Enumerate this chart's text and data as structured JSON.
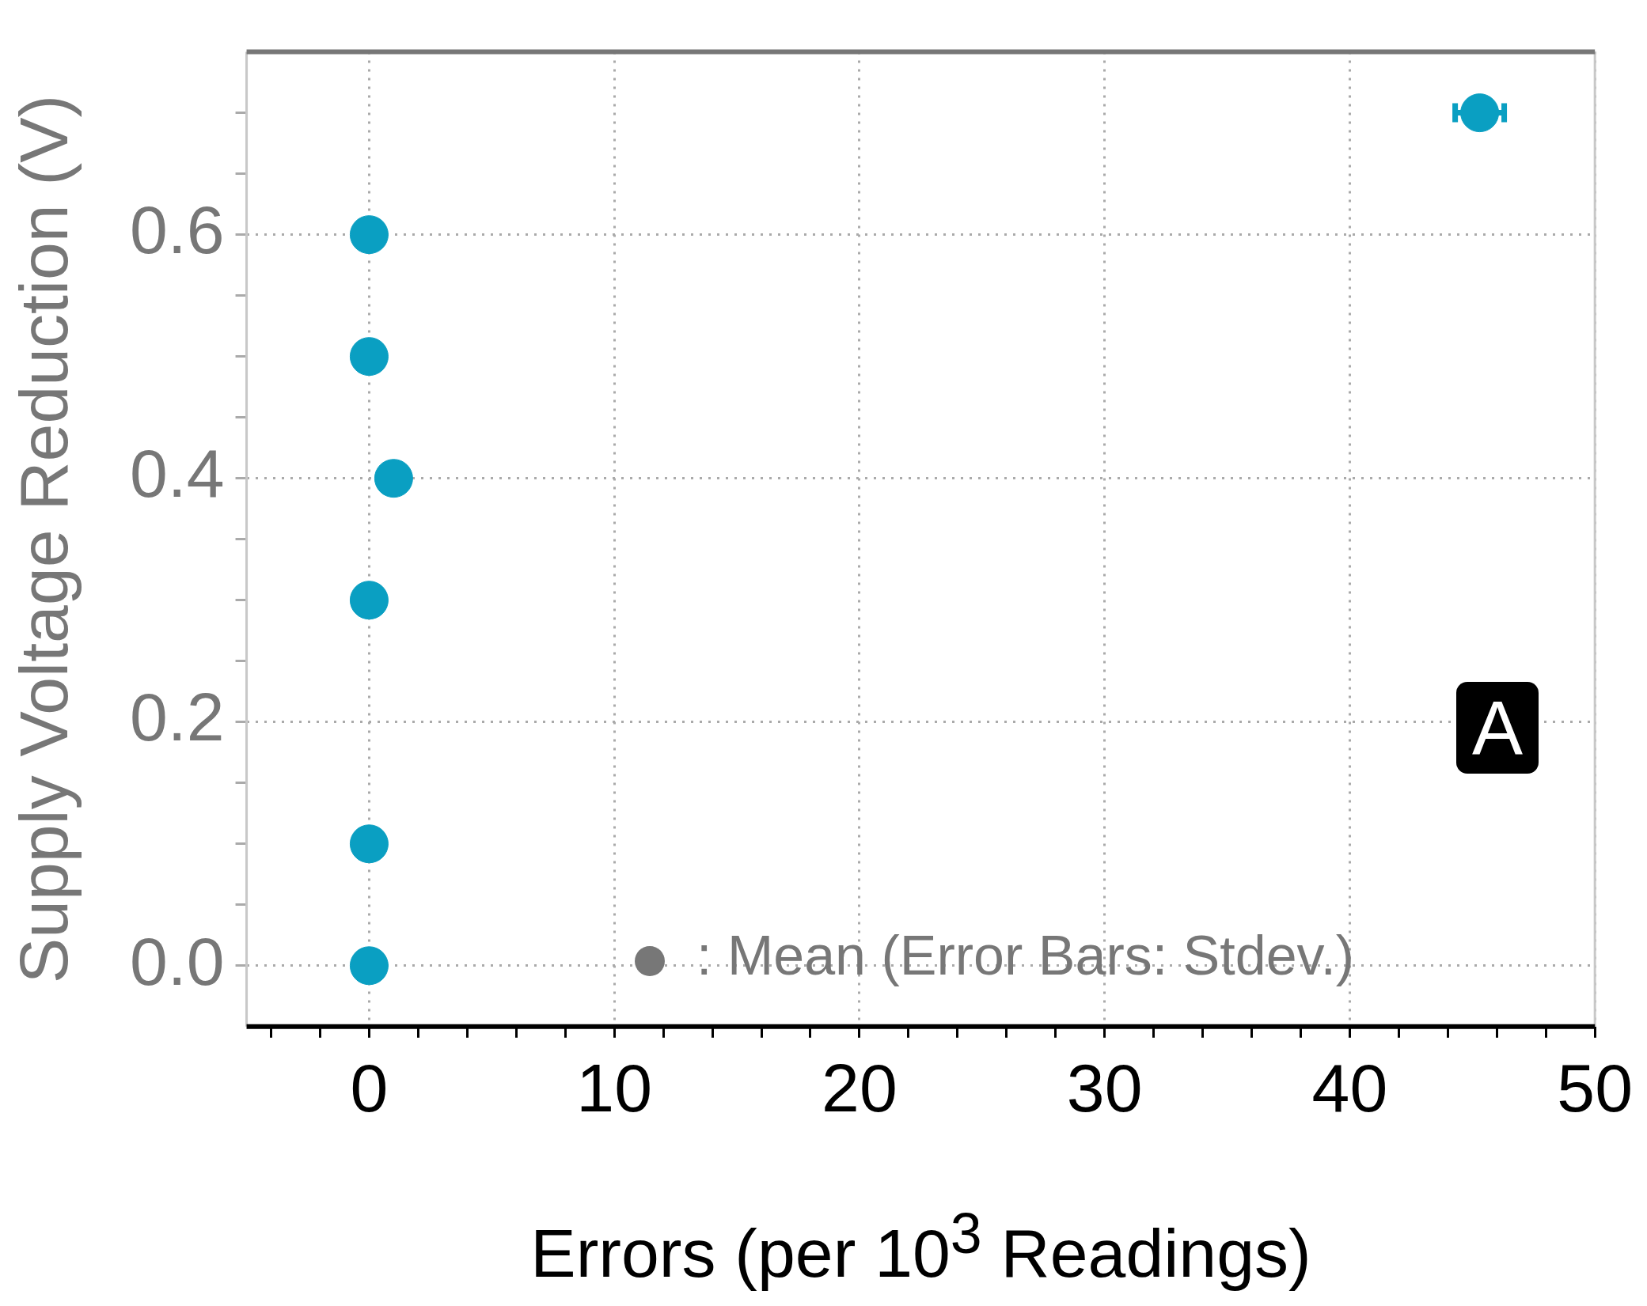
{
  "chart_data": {
    "type": "scatter",
    "xlabel": "Errors (per 10$^{3}$ Readings)",
    "ylabel": "Supply Voltage Reduction (V)",
    "annotations": [
      ":  Mean (Error Bars: Stdev.)",
      "A"
    ],
    "series": [
      {
        "color": "#0a9fc2",
        "x": [
          0,
          0,
          1,
          0,
          0,
          0,
          45.3
        ],
        "values": [
          0.6,
          0.5,
          0.4,
          0.3,
          0.1,
          0.0,
          0.7
        ],
        "xerrors": [
          null,
          null,
          null,
          null,
          null,
          null,
          1.0
        ]
      }
    ],
    "marker": "circle",
    "xlim": [
      -5,
      50
    ],
    "xticks": [
      {
        "value": -4,
        "label": null
      },
      {
        "value": -2,
        "label": null
      },
      0,
      {
        "value": 2,
        "label": null
      },
      {
        "value": 4,
        "label": null
      },
      {
        "value": 6,
        "label": null
      },
      {
        "value": 8,
        "label": null
      },
      10,
      {
        "value": 12,
        "label": null
      },
      {
        "value": 14,
        "label": null
      },
      {
        "value": 16,
        "label": null
      },
      {
        "value": 18,
        "label": null
      },
      20,
      {
        "value": 22,
        "label": null
      },
      {
        "value": 24,
        "label": null
      },
      {
        "value": 26,
        "label": null
      },
      {
        "value": 28,
        "label": null
      },
      30,
      {
        "value": 32,
        "label": null
      },
      {
        "value": 34,
        "label": null
      },
      {
        "value": 36,
        "label": null
      },
      {
        "value": 38,
        "label": null
      },
      40,
      {
        "value": 42,
        "label": null
      },
      {
        "value": 44,
        "label": null
      },
      {
        "value": 46,
        "label": null
      },
      {
        "value": 48,
        "label": null
      },
      50
    ],
    "ylim": [
      -0.05,
      0.75
    ],
    "yticks": [
      {
        "value": 0,
        "label": "0.0"
      },
      {
        "value": 0.05,
        "label": null
      },
      {
        "value": 0.1,
        "label": null
      },
      {
        "value": 0.15,
        "label": null
      },
      {
        "value": 0.2,
        "label": "0.2"
      },
      {
        "value": 0.25,
        "label": null
      },
      {
        "value": 0.3,
        "label": null
      },
      {
        "value": 0.35,
        "label": null
      },
      {
        "value": 0.4,
        "label": "0.4"
      },
      {
        "value": 0.45,
        "label": null
      },
      {
        "value": 0.5,
        "label": null
      },
      {
        "value": 0.55,
        "label": null
      },
      {
        "value": 0.6,
        "label": "0.6"
      },
      {
        "value": 0.65,
        "label": null
      },
      {
        "value": 0.7,
        "label": null
      }
    ],
    "grid": true,
    "legend": false
  }
}
